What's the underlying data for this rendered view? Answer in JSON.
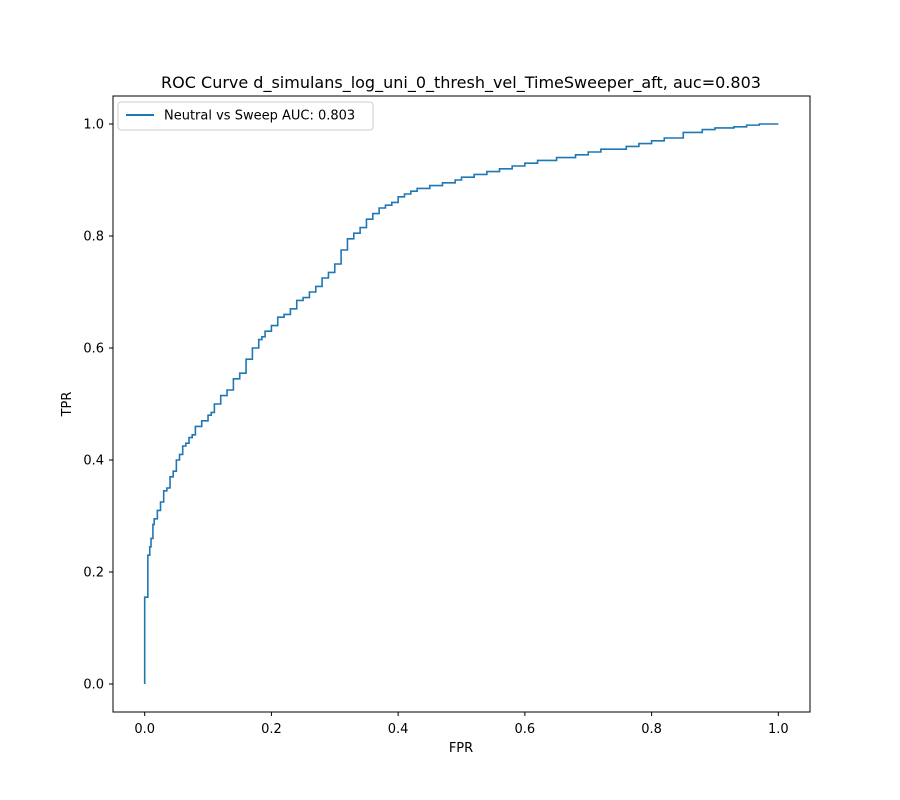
{
  "chart_data": {
    "type": "line",
    "title": "ROC Curve d_simulans_log_uni_0_thresh_vel_TimeSweeper_aft, auc=0.803",
    "xlabel": "FPR",
    "ylabel": "TPR",
    "xlim": [
      -0.05,
      1.05
    ],
    "ylim": [
      -0.05,
      1.05
    ],
    "xticks": [
      0.0,
      0.2,
      0.4,
      0.6,
      0.8,
      1.0
    ],
    "yticks": [
      0.0,
      0.2,
      0.4,
      0.6,
      0.8,
      1.0
    ],
    "xtick_labels": [
      "0.0",
      "0.2",
      "0.4",
      "0.6",
      "0.8",
      "1.0"
    ],
    "ytick_labels": [
      "0.0",
      "0.2",
      "0.4",
      "0.6",
      "0.8",
      "1.0"
    ],
    "grid": false,
    "legend_position": "upper-left",
    "series": [
      {
        "name": "Neutral vs Sweep AUC: 0.803",
        "color": "#1f77b4",
        "x": [
          0.0,
          0.0,
          0.003,
          0.005,
          0.005,
          0.008,
          0.01,
          0.013,
          0.015,
          0.02,
          0.025,
          0.03,
          0.035,
          0.04,
          0.045,
          0.05,
          0.055,
          0.06,
          0.065,
          0.07,
          0.075,
          0.08,
          0.09,
          0.1,
          0.105,
          0.11,
          0.12,
          0.13,
          0.14,
          0.15,
          0.16,
          0.17,
          0.18,
          0.185,
          0.19,
          0.2,
          0.21,
          0.22,
          0.23,
          0.24,
          0.25,
          0.26,
          0.27,
          0.28,
          0.29,
          0.3,
          0.31,
          0.32,
          0.33,
          0.34,
          0.35,
          0.36,
          0.37,
          0.38,
          0.39,
          0.4,
          0.41,
          0.42,
          0.43,
          0.45,
          0.47,
          0.49,
          0.5,
          0.52,
          0.54,
          0.56,
          0.58,
          0.6,
          0.62,
          0.65,
          0.68,
          0.7,
          0.72,
          0.74,
          0.76,
          0.78,
          0.8,
          0.82,
          0.85,
          0.88,
          0.9,
          0.93,
          0.95,
          0.97,
          0.99,
          1.0
        ],
        "y": [
          0.0,
          0.13,
          0.155,
          0.155,
          0.21,
          0.23,
          0.245,
          0.26,
          0.285,
          0.295,
          0.31,
          0.325,
          0.345,
          0.35,
          0.37,
          0.38,
          0.4,
          0.41,
          0.425,
          0.43,
          0.44,
          0.445,
          0.46,
          0.47,
          0.48,
          0.485,
          0.5,
          0.515,
          0.525,
          0.545,
          0.555,
          0.58,
          0.6,
          0.615,
          0.62,
          0.63,
          0.64,
          0.655,
          0.66,
          0.67,
          0.685,
          0.69,
          0.7,
          0.71,
          0.725,
          0.735,
          0.75,
          0.775,
          0.795,
          0.805,
          0.815,
          0.83,
          0.84,
          0.85,
          0.855,
          0.86,
          0.87,
          0.875,
          0.88,
          0.885,
          0.89,
          0.895,
          0.9,
          0.905,
          0.91,
          0.915,
          0.92,
          0.925,
          0.93,
          0.935,
          0.94,
          0.945,
          0.95,
          0.955,
          0.955,
          0.96,
          0.965,
          0.97,
          0.975,
          0.985,
          0.99,
          0.993,
          0.995,
          0.998,
          1.0,
          1.0
        ]
      }
    ]
  }
}
